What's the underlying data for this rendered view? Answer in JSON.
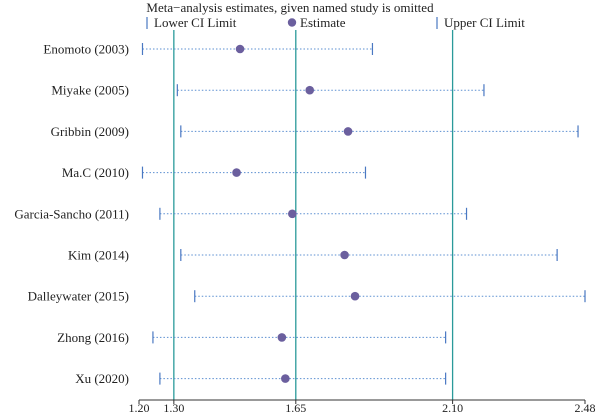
{
  "chart_data": {
    "type": "forest",
    "title": "Meta−analysis estimates, given named study is omitted",
    "legend": {
      "lower_label": "Lower CI Limit",
      "estimate_label": "Estimate",
      "upper_label": "Upper CI Limit",
      "placement": "top"
    },
    "xlim": [
      1.2,
      2.48
    ],
    "x_ticks": [
      {
        "value": 1.2,
        "label": "1.20"
      },
      {
        "value": 1.3,
        "label": "1.30"
      },
      {
        "value": 1.65,
        "label": "1.65"
      },
      {
        "value": 2.1,
        "label": "2.10"
      },
      {
        "value": 2.48,
        "label": "2.48"
      }
    ],
    "reference_lines": [
      1.3,
      1.65,
      2.1
    ],
    "studies": [
      {
        "name": "Enomoto  (2003)",
        "lower": 1.21,
        "estimate": 1.49,
        "upper": 1.87
      },
      {
        "name": "Miyake  (2005)",
        "lower": 1.31,
        "estimate": 1.69,
        "upper": 2.19
      },
      {
        "name": "Gribbin  (2009)",
        "lower": 1.32,
        "estimate": 1.8,
        "upper": 2.46
      },
      {
        "name": "Ma.C (2010)",
        "lower": 1.21,
        "estimate": 1.48,
        "upper": 1.85
      },
      {
        "name": "Garcia-Sancho  (2011)",
        "lower": 1.26,
        "estimate": 1.64,
        "upper": 2.14
      },
      {
        "name": "Kim  (2014)",
        "lower": 1.32,
        "estimate": 1.79,
        "upper": 2.4
      },
      {
        "name": "Dalleywater (2015)",
        "lower": 1.36,
        "estimate": 1.82,
        "upper": 2.48
      },
      {
        "name": "Zhong (2016)",
        "lower": 1.24,
        "estimate": 1.61,
        "upper": 2.08
      },
      {
        "name": "Xu  (2020)",
        "lower": 1.26,
        "estimate": 1.62,
        "upper": 2.08
      }
    ],
    "colors": {
      "estimate": "#6b5f9e",
      "ci_line": "#5b8fd1",
      "ci_cap": "#4a78c2",
      "reference": "#2a9a9a",
      "axis": "#333333"
    }
  }
}
